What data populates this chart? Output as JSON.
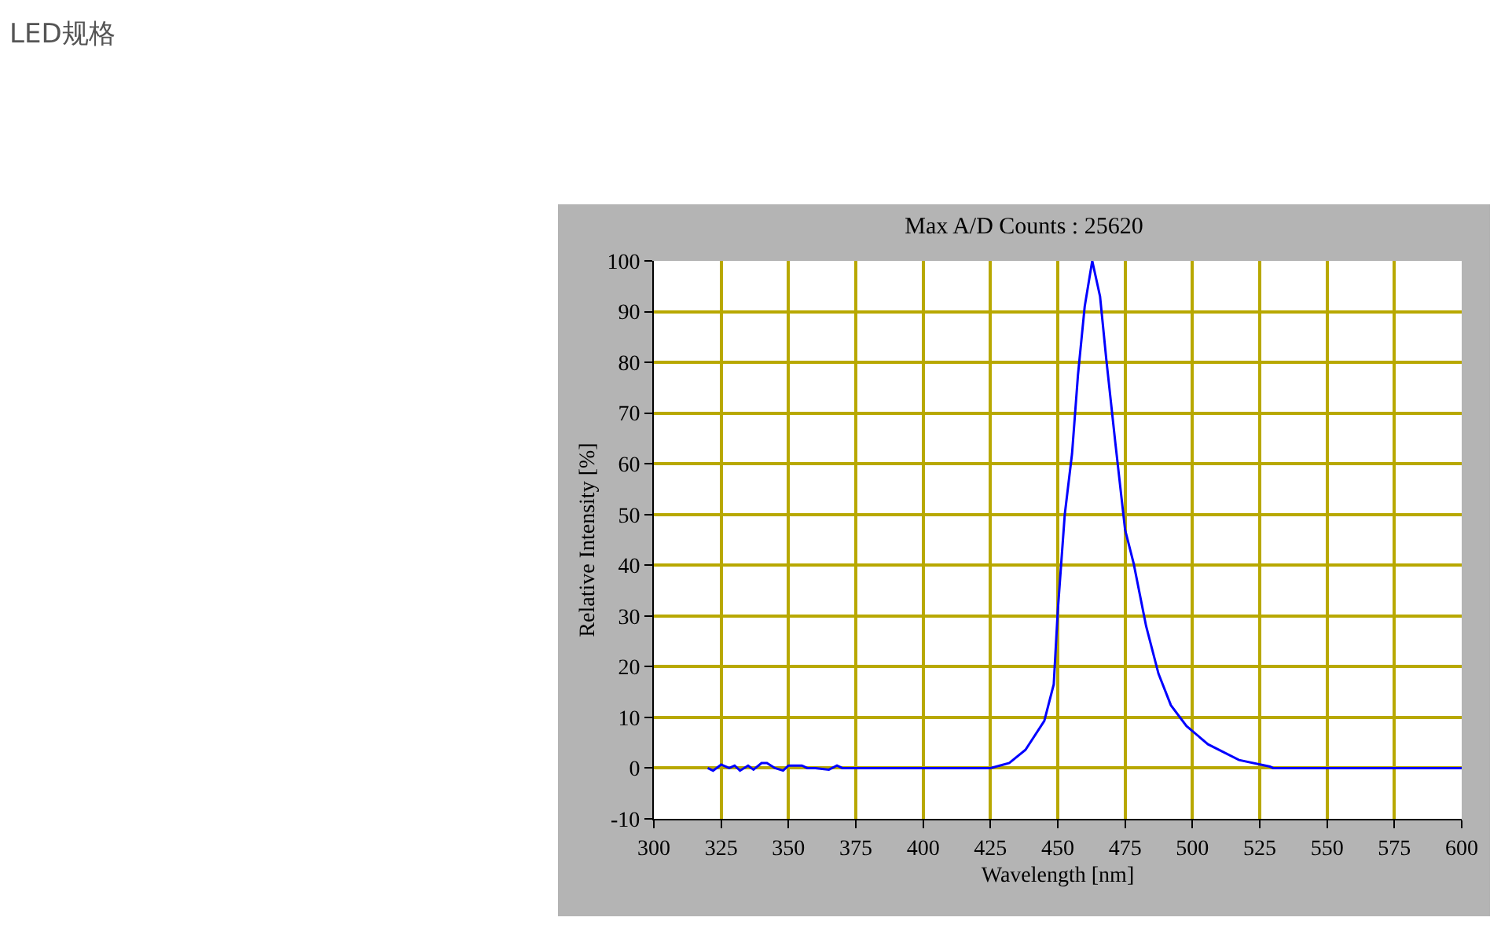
{
  "chart_data": {
    "type": "line",
    "title": "LED规格",
    "subtitle": "Max A/D Counts : 25620",
    "xlabel": "Wavelength [nm]",
    "ylabel": "Relative Intensity [%]",
    "xlim": [
      300,
      600
    ],
    "xticks": [
      300,
      325,
      350,
      375,
      400,
      425,
      450,
      475,
      500,
      525,
      550,
      575,
      600
    ],
    "ylim": [
      -10,
      100
    ],
    "yticks": [
      -10,
      0,
      10,
      20,
      30,
      40,
      50,
      60,
      70,
      80,
      90,
      100
    ],
    "grid": true,
    "marker": "none",
    "line_style": "solid",
    "series": [
      {
        "color": "#0000ff",
        "x": [
          320,
          322,
          325,
          328,
          330,
          332,
          335,
          337,
          340,
          342,
          345,
          348,
          350,
          355,
          357,
          360,
          365,
          368,
          370,
          425,
          432,
          438,
          445,
          448.5,
          450,
          452.6,
          455.3,
          457.5,
          460,
          462.8,
          465.7,
          468,
          471.4,
          475,
          478.2,
          482.8,
          487.4,
          492,
          497.8,
          505.8,
          517.3,
          528.8,
          530,
          600
        ],
        "values": [
          0,
          -0.5,
          0.7,
          0,
          0.5,
          -0.5,
          0.5,
          -0.3,
          1,
          1,
          0,
          -0.5,
          0.5,
          0.5,
          0,
          0,
          -0.3,
          0.5,
          0,
          0,
          1,
          3.6,
          9.3,
          16.5,
          31,
          50,
          62,
          77.5,
          91,
          100,
          93,
          80.7,
          64,
          47,
          40.3,
          28,
          18.6,
          12.4,
          8.3,
          4.7,
          1.6,
          0.3,
          0,
          0
        ]
      }
    ]
  }
}
